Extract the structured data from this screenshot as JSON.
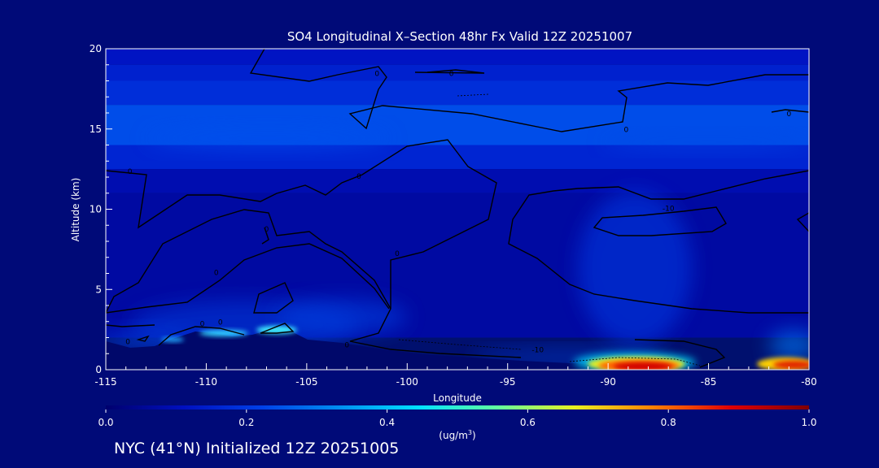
{
  "chart_data": {
    "type": "heatmap",
    "title": "SO4 Longitudinal X–Section 48hr  Fx Valid 12Z 20251007",
    "xlabel": "Longitude",
    "ylabel": "Altitude (km)",
    "xlim": [
      -115,
      -80
    ],
    "ylim": [
      0,
      20
    ],
    "x_ticks": [
      -115,
      -110,
      -105,
      -100,
      -95,
      -90,
      -85,
      -80
    ],
    "x_tick_labels": [
      "-115",
      "-110",
      "-105",
      "-100",
      "-95",
      "-90",
      "-85",
      "-80"
    ],
    "y_ticks": [
      0,
      5,
      10,
      15,
      20
    ],
    "y_tick_labels": [
      "0",
      "5",
      "10",
      "15",
      "20"
    ],
    "colorbar": {
      "min": 0.0,
      "max": 1.0,
      "ticks": [
        0.0,
        0.2,
        0.4,
        0.6,
        0.8,
        1.0
      ],
      "tick_labels": [
        "0.0",
        "0.2",
        "0.4",
        "0.6",
        "0.8",
        "1.0"
      ],
      "units": "(ug/m",
      "units_sup": "3",
      "units_close": ")",
      "colors": [
        "#00006e",
        "#0010c0",
        "#0040e8",
        "#0090f0",
        "#00e0ff",
        "#60ffa0",
        "#e8f020",
        "#ff8000",
        "#e00000",
        "#800000"
      ]
    },
    "field_bands": [
      {
        "alt": [
          19,
          20
        ],
        "value": 0.12
      },
      {
        "alt": [
          18,
          19
        ],
        "value": 0.15
      },
      {
        "alt": [
          16.5,
          18
        ],
        "value": 0.18
      },
      {
        "alt": [
          14,
          16.5
        ],
        "value": 0.24
      },
      {
        "alt": [
          12.5,
          14
        ],
        "value": 0.16
      },
      {
        "alt": [
          11,
          12.5
        ],
        "value": 0.09
      },
      {
        "alt": [
          2,
          11
        ],
        "value": 0.07
      }
    ],
    "hotspots": [
      {
        "lon": -88.2,
        "alt": 0.5,
        "value": 0.9
      },
      {
        "lon": -81,
        "alt": 0.4,
        "value": 0.8
      },
      {
        "lon": -106,
        "alt": 2.4,
        "value": 0.45
      },
      {
        "lon": -108.5,
        "alt": 2.1,
        "value": 0.4
      }
    ],
    "contour_labels": [
      {
        "lon": -101.5,
        "alt": 18.3,
        "text": "0"
      },
      {
        "lon": -97.8,
        "alt": 18.3,
        "text": "0"
      },
      {
        "lon": -89.1,
        "alt": 14.8,
        "text": "0"
      },
      {
        "lon": -81,
        "alt": 15.8,
        "text": "0"
      },
      {
        "lon": -113.8,
        "alt": 12.2,
        "text": "0"
      },
      {
        "lon": -102.4,
        "alt": 11.9,
        "text": "0"
      },
      {
        "lon": -87,
        "alt": 9.9,
        "text": "-10"
      },
      {
        "lon": -107,
        "alt": 8.6,
        "text": "0"
      },
      {
        "lon": -100.5,
        "alt": 7.1,
        "text": "0"
      },
      {
        "lon": -109.5,
        "alt": 5.9,
        "text": "0"
      },
      {
        "lon": -110.2,
        "alt": 2.7,
        "text": "0"
      },
      {
        "lon": -109.3,
        "alt": 2.8,
        "text": "0"
      },
      {
        "lon": -103,
        "alt": 1.4,
        "text": "0"
      },
      {
        "lon": -113.9,
        "alt": 1.6,
        "text": "0"
      },
      {
        "lon": -93.5,
        "alt": 1.1,
        "text": "-10"
      }
    ]
  },
  "footer": {
    "text": "NYC (41°N) Initialized 12Z 20251005"
  }
}
